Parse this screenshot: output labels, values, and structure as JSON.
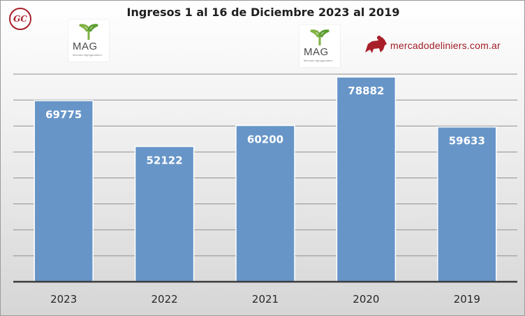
{
  "chart_data": {
    "type": "bar",
    "title": "Ingresos 1 al 16 de Diciembre 2023 al 2019",
    "categories": [
      "2023",
      "2022",
      "2021",
      "2020",
      "2019"
    ],
    "values": [
      69775,
      52122,
      60200,
      78882,
      59633
    ],
    "value_labels": [
      "69775",
      "52122",
      "60200",
      "78882",
      "59633"
    ],
    "xlabel": "",
    "ylabel": "",
    "ylim": [
      0,
      80000
    ],
    "grid": true,
    "legend": "none",
    "bar_color": "#6795c8"
  },
  "logos": {
    "gc_text": "GC",
    "mag_text": "MAG",
    "mag_sub": "Mercado Agroganadero",
    "mercado_text": "mercadodeliniers.com.ar",
    "brand_red": "#a81f2a"
  }
}
